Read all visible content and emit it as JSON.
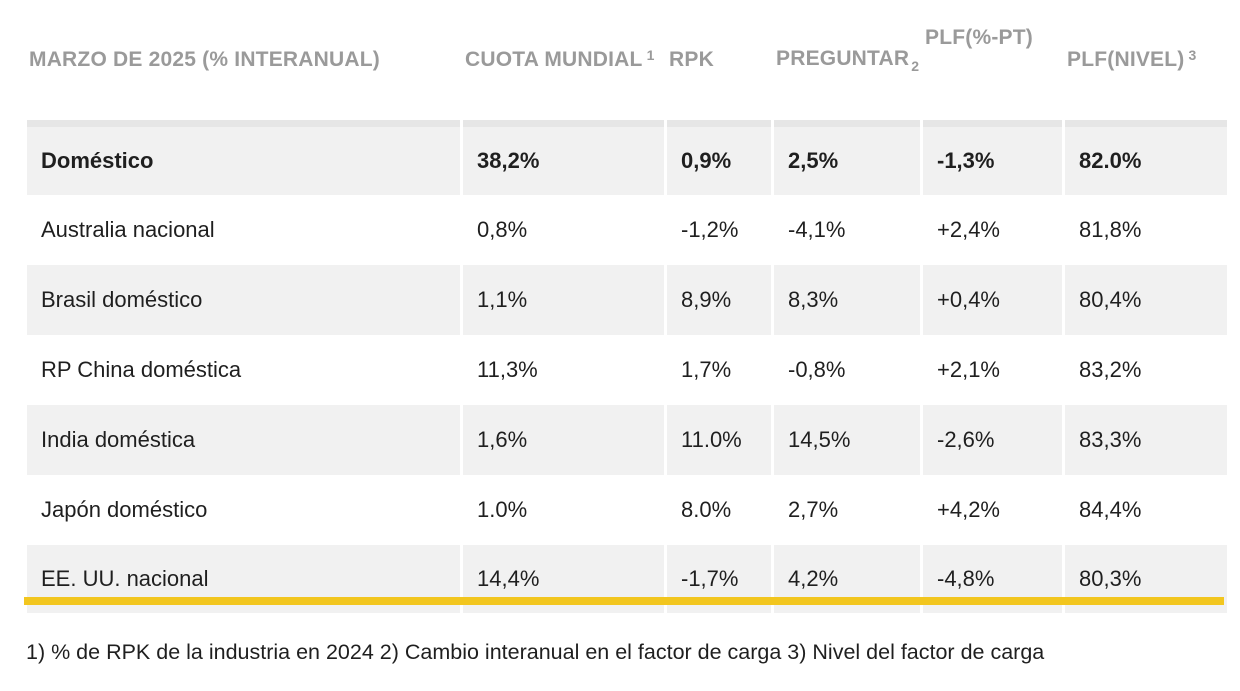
{
  "table": {
    "headers": {
      "col0": "MARZO DE 2025 (% INTERANUAL)",
      "col1": "CUOTA MUNDIAL",
      "col1_note": "1",
      "col2": "RPK",
      "col3": "PREGUNTAR",
      "col3_note": "2",
      "col4": "PLF(%-PT)",
      "col5": "PLF(NIVEL)",
      "col5_note": "3"
    },
    "rows": [
      {
        "name": "Doméstico",
        "share": "38,2%",
        "rpk": "0,9%",
        "ask": "2,5%",
        "plf_pt": "-1,3%",
        "plf_level": "82.0%"
      },
      {
        "name": "Australia nacional",
        "share": "0,8%",
        "rpk": "-1,2%",
        "ask": "-4,1%",
        "plf_pt": "+2,4%",
        "plf_level": "81,8%"
      },
      {
        "name": "Brasil doméstico",
        "share": "1,1%",
        "rpk": "8,9%",
        "ask": "8,3%",
        "plf_pt": "+0,4%",
        "plf_level": "80,4%"
      },
      {
        "name": "RP China doméstica",
        "share": "11,3%",
        "rpk": "1,7%",
        "ask": "-0,8%",
        "plf_pt": "+2,1%",
        "plf_level": "83,2%"
      },
      {
        "name": "India doméstica",
        "share": "1,6%",
        "rpk": "11.0%",
        "ask": "14,5%",
        "plf_pt": "-2,6%",
        "plf_level": "83,3%"
      },
      {
        "name": "Japón doméstico",
        "share": "1.0%",
        "rpk": "8.0%",
        "ask": "2,7%",
        "plf_pt": "+4,2%",
        "plf_level": "84,4%"
      },
      {
        "name": "EE. UU. nacional",
        "share": "14,4%",
        "rpk": "-1,7%",
        "ask": "4,2%",
        "plf_pt": "-4,8%",
        "plf_level": "80,3%"
      }
    ]
  },
  "footnote": "1) % de RPK de la industria en 2024 2) Cambio interanual en el factor de carga 3) Nivel del factor de carga",
  "colors": {
    "header_text": "#9a9a9a",
    "row_stripe": "#f1f1f1",
    "accent_rule": "#f2c61f"
  }
}
